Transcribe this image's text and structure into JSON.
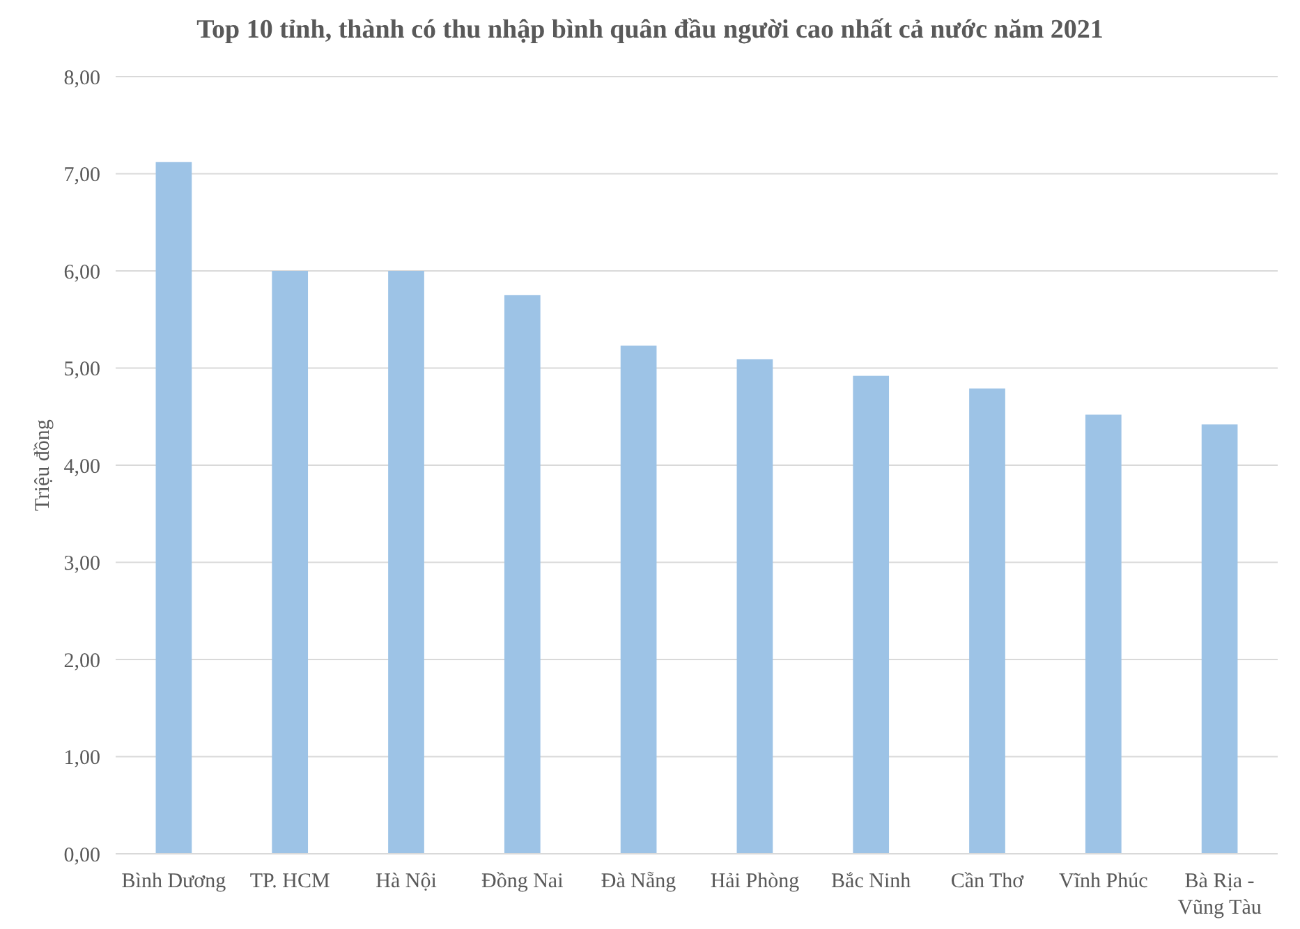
{
  "chart_data": {
    "type": "bar",
    "title": "Top 10 tỉnh, thành có thu nhập bình quân đầu người cao nhất cả nước năm 2021",
    "ylabel": "Triệu đồng",
    "categories": [
      "Bình Dương",
      "TP. HCM",
      "Hà Nội",
      "Đồng Nai",
      "Đà Nẵng",
      "Hải Phòng",
      "Bắc Ninh",
      "Cần Thơ",
      "Vĩnh Phúc",
      "Bà Rịa - Vũng Tàu"
    ],
    "values": [
      7.12,
      6.0,
      6.0,
      5.75,
      5.23,
      5.09,
      4.92,
      4.79,
      4.52,
      4.42
    ],
    "color": "#9dc3e6",
    "ylim": [
      0,
      8
    ],
    "yticks": [
      {
        "value": 0,
        "label": "0,00"
      },
      {
        "value": 1,
        "label": "1,00"
      },
      {
        "value": 2,
        "label": "2,00"
      },
      {
        "value": 3,
        "label": "3,00"
      },
      {
        "value": 4,
        "label": "4,00"
      },
      {
        "value": 5,
        "label": "5,00"
      },
      {
        "value": 6,
        "label": "6,00"
      },
      {
        "value": 7,
        "label": "7,00"
      },
      {
        "value": 8,
        "label": "8,00"
      }
    ],
    "grid": "y"
  }
}
